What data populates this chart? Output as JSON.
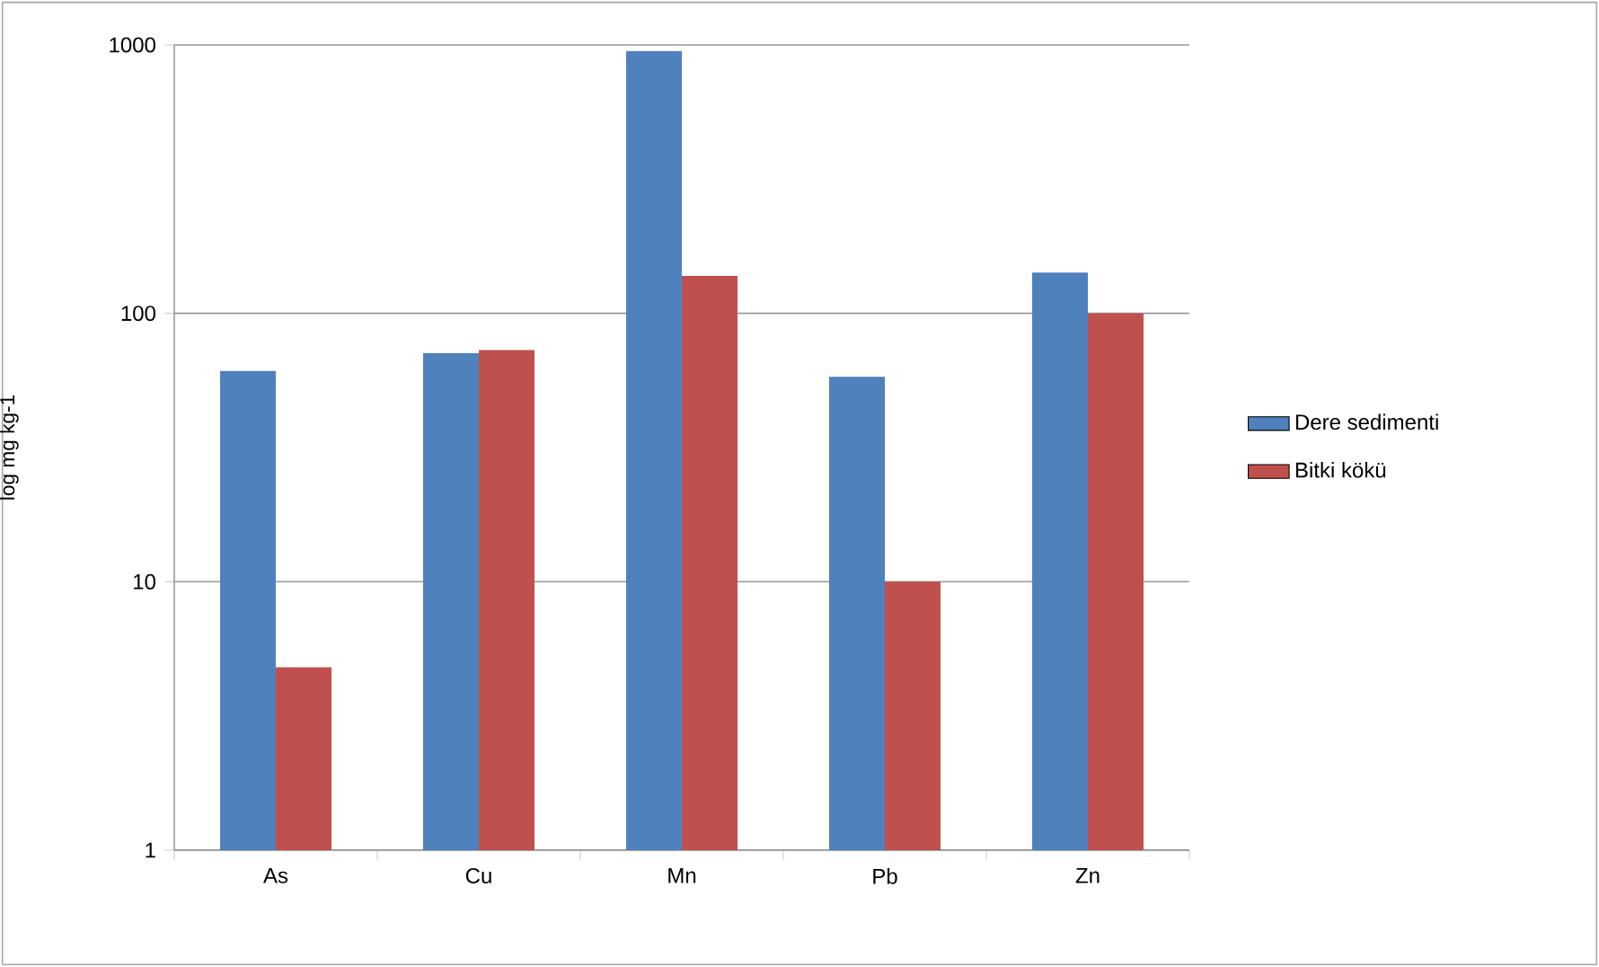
{
  "chart_data": {
    "type": "bar",
    "ylabel": "log mg kg-1",
    "log": "y",
    "categories": [
      "As",
      "Cu",
      "Mn",
      "Pb",
      "Zn"
    ],
    "series": [
      {
        "name": "Dere sedimenti",
        "color": "#4f81bd",
        "values": [
          61,
          71,
          950,
          58,
          142
        ]
      },
      {
        "name": "Bitki kökü",
        "color": "#c0504d",
        "values": [
          4.8,
          73,
          138,
          10,
          100
        ]
      }
    ],
    "ylim": [
      1,
      1000
    ],
    "yticks": [
      1,
      10,
      100,
      1000
    ],
    "grid": "y",
    "legend": "right"
  }
}
